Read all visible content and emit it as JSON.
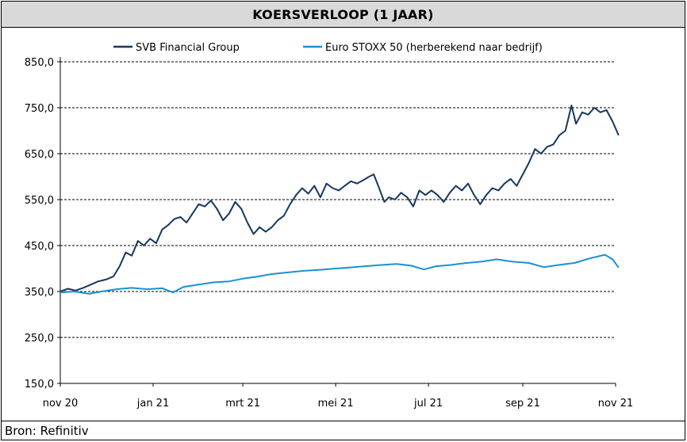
{
  "title": "KOERSVERLOOP (1 JAAR)",
  "source": "Bron: Refinitiv",
  "chart_data": {
    "type": "line",
    "title": "KOERSVERLOOP (1 JAAR)",
    "xlabel": "",
    "ylabel": "",
    "ylim": [
      150,
      850
    ],
    "yticks": [
      "850,0",
      "750,0",
      "650,0",
      "550,0",
      "450,0",
      "350,0",
      "250,0",
      "150,0"
    ],
    "ytick_values": [
      850,
      750,
      650,
      550,
      450,
      350,
      250,
      150
    ],
    "xticks": [
      "nov 20",
      "jan 21",
      "mrt 21",
      "mei 21",
      "jul 21",
      "sep 21",
      "nov 21"
    ],
    "xtick_dates": [
      "2020-11-01",
      "2021-01-01",
      "2021-03-01",
      "2021-05-01",
      "2021-07-01",
      "2021-09-01",
      "2021-11-01"
    ],
    "grid": "horizontal dashed",
    "legend_position": "top",
    "series": [
      {
        "name": "SVB Financial Group",
        "color": "#17375e",
        "points": [
          [
            "2020-11-01",
            350
          ],
          [
            "2020-11-06",
            356
          ],
          [
            "2020-11-11",
            352
          ],
          [
            "2020-11-16",
            358
          ],
          [
            "2020-11-21",
            365
          ],
          [
            "2020-11-26",
            372
          ],
          [
            "2020-12-01",
            376
          ],
          [
            "2020-12-06",
            383
          ],
          [
            "2020-12-10",
            405
          ],
          [
            "2020-12-14",
            435
          ],
          [
            "2020-12-18",
            428
          ],
          [
            "2020-12-22",
            460
          ],
          [
            "2020-12-26",
            450
          ],
          [
            "2020-12-30",
            465
          ],
          [
            "2021-01-03",
            455
          ],
          [
            "2021-01-07",
            485
          ],
          [
            "2021-01-11",
            495
          ],
          [
            "2021-01-15",
            508
          ],
          [
            "2021-01-19",
            512
          ],
          [
            "2021-01-23",
            500
          ],
          [
            "2021-01-27",
            520
          ],
          [
            "2021-01-31",
            540
          ],
          [
            "2021-02-04",
            535
          ],
          [
            "2021-02-08",
            548
          ],
          [
            "2021-02-12",
            530
          ],
          [
            "2021-02-16",
            505
          ],
          [
            "2021-02-20",
            520
          ],
          [
            "2021-02-24",
            545
          ],
          [
            "2021-02-28",
            530
          ],
          [
            "2021-03-04",
            500
          ],
          [
            "2021-03-08",
            475
          ],
          [
            "2021-03-12",
            490
          ],
          [
            "2021-03-16",
            480
          ],
          [
            "2021-03-20",
            490
          ],
          [
            "2021-03-24",
            505
          ],
          [
            "2021-03-28",
            515
          ],
          [
            "2021-04-01",
            540
          ],
          [
            "2021-04-05",
            560
          ],
          [
            "2021-04-09",
            575
          ],
          [
            "2021-04-13",
            563
          ],
          [
            "2021-04-17",
            580
          ],
          [
            "2021-04-21",
            555
          ],
          [
            "2021-04-25",
            585
          ],
          [
            "2021-04-29",
            575
          ],
          [
            "2021-05-03",
            570
          ],
          [
            "2021-05-07",
            580
          ],
          [
            "2021-05-11",
            590
          ],
          [
            "2021-05-15",
            585
          ],
          [
            "2021-05-19",
            592
          ],
          [
            "2021-05-23",
            600
          ],
          [
            "2021-05-26",
            605
          ],
          [
            "2021-05-29",
            580
          ],
          [
            "2021-06-02",
            545
          ],
          [
            "2021-06-05",
            555
          ],
          [
            "2021-06-09",
            550
          ],
          [
            "2021-06-13",
            565
          ],
          [
            "2021-06-17",
            555
          ],
          [
            "2021-06-21",
            535
          ],
          [
            "2021-06-25",
            570
          ],
          [
            "2021-06-29",
            560
          ],
          [
            "2021-07-03",
            570
          ],
          [
            "2021-07-07",
            560
          ],
          [
            "2021-07-11",
            545
          ],
          [
            "2021-07-15",
            565
          ],
          [
            "2021-07-19",
            580
          ],
          [
            "2021-07-23",
            570
          ],
          [
            "2021-07-27",
            585
          ],
          [
            "2021-07-31",
            560
          ],
          [
            "2021-08-04",
            540
          ],
          [
            "2021-08-08",
            560
          ],
          [
            "2021-08-12",
            575
          ],
          [
            "2021-08-16",
            570
          ],
          [
            "2021-08-20",
            585
          ],
          [
            "2021-08-24",
            595
          ],
          [
            "2021-08-28",
            580
          ],
          [
            "2021-09-01",
            605
          ],
          [
            "2021-09-05",
            630
          ],
          [
            "2021-09-09",
            660
          ],
          [
            "2021-09-13",
            650
          ],
          [
            "2021-09-17",
            665
          ],
          [
            "2021-09-21",
            670
          ],
          [
            "2021-09-25",
            690
          ],
          [
            "2021-09-29",
            700
          ],
          [
            "2021-10-03",
            755
          ],
          [
            "2021-10-06",
            715
          ],
          [
            "2021-10-10",
            740
          ],
          [
            "2021-10-14",
            735
          ],
          [
            "2021-10-18",
            750
          ],
          [
            "2021-10-22",
            740
          ],
          [
            "2021-10-26",
            745
          ],
          [
            "2021-10-30",
            720
          ],
          [
            "2021-11-03",
            690
          ]
        ]
      },
      {
        "name": "Euro STOXX 50 (herberekend naar bedrijf)",
        "color": "#1b91d0",
        "points": [
          [
            "2020-11-01",
            348
          ],
          [
            "2020-11-10",
            350
          ],
          [
            "2020-11-20",
            345
          ],
          [
            "2020-11-28",
            350
          ],
          [
            "2020-12-08",
            355
          ],
          [
            "2020-12-18",
            358
          ],
          [
            "2020-12-28",
            355
          ],
          [
            "2021-01-07",
            357
          ],
          [
            "2021-01-14",
            348
          ],
          [
            "2021-01-21",
            360
          ],
          [
            "2021-01-31",
            365
          ],
          [
            "2021-02-10",
            370
          ],
          [
            "2021-02-20",
            372
          ],
          [
            "2021-03-01",
            378
          ],
          [
            "2021-03-10",
            382
          ],
          [
            "2021-03-20",
            388
          ],
          [
            "2021-04-01",
            392
          ],
          [
            "2021-04-10",
            395
          ],
          [
            "2021-04-20",
            397
          ],
          [
            "2021-05-01",
            400
          ],
          [
            "2021-05-10",
            402
          ],
          [
            "2021-05-20",
            405
          ],
          [
            "2021-06-01",
            408
          ],
          [
            "2021-06-10",
            410
          ],
          [
            "2021-06-20",
            406
          ],
          [
            "2021-06-28",
            398
          ],
          [
            "2021-07-06",
            405
          ],
          [
            "2021-07-16",
            408
          ],
          [
            "2021-07-26",
            412
          ],
          [
            "2021-08-05",
            415
          ],
          [
            "2021-08-15",
            420
          ],
          [
            "2021-08-25",
            415
          ],
          [
            "2021-09-05",
            412
          ],
          [
            "2021-09-15",
            403
          ],
          [
            "2021-09-25",
            408
          ],
          [
            "2021-10-05",
            412
          ],
          [
            "2021-10-15",
            422
          ],
          [
            "2021-10-25",
            430
          ],
          [
            "2021-10-30",
            420
          ],
          [
            "2021-11-03",
            402
          ]
        ]
      }
    ]
  }
}
